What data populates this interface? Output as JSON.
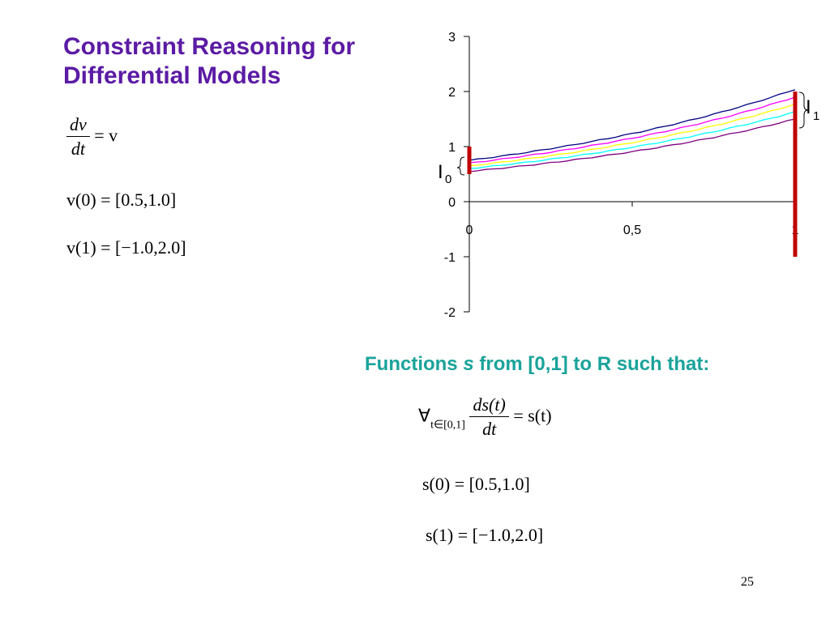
{
  "slide": {
    "title": "Constraint Reasoning for Differential Models",
    "page_number": "25"
  },
  "left_equations": {
    "ode": {
      "numerator": "dv",
      "denominator": "dt",
      "rhs": "= v"
    },
    "v0": "v(0) = [0.5,1.0]",
    "v1": "v(1) = [−1.0,2.0]"
  },
  "right_section": {
    "subtitle_prefix": "Functions ",
    "subtitle_var": "s",
    "subtitle_suffix": " from [0,1] to R such that:",
    "forall": "∀",
    "forall_sub": "t∈[0,1]",
    "ode": {
      "numerator": "ds(t)",
      "denominator": "dt",
      "rhs": "= s(t)"
    },
    "s0": "s(0) = [0.5,1.0]",
    "s1": "s(1) = [−1.0,2.0]"
  },
  "chart_data": {
    "type": "line",
    "ylim": [
      -2,
      3
    ],
    "xlim": [
      0,
      1
    ],
    "y_ticks": [
      "3",
      "2",
      "1",
      "0",
      "-1",
      "-2"
    ],
    "x_tick_labels": [
      "0",
      "0,5",
      "1"
    ],
    "interval_labels": {
      "I0": {
        "main": "I",
        "sub": "0"
      },
      "I1": {
        "main": "I",
        "sub": "1"
      }
    },
    "intervals": [
      {
        "name": "I0",
        "x": 0,
        "low": 0.5,
        "high": 1.0,
        "color": "#c00000"
      },
      {
        "name": "I1",
        "x": 1,
        "low": -1.0,
        "high": 2.0,
        "color": "#c00000"
      }
    ],
    "series": [
      {
        "initial": 0.75,
        "color": "#000080",
        "values_at_x": [
          0,
          0.25,
          0.5,
          0.75,
          1
        ],
        "values": [
          0.75,
          0.96,
          1.24,
          1.59,
          2.04
        ]
      },
      {
        "initial": 0.7,
        "color": "#ff00ff",
        "values_at_x": [
          0,
          0.25,
          0.5,
          0.75,
          1
        ],
        "values": [
          0.7,
          0.9,
          1.15,
          1.48,
          1.9
        ]
      },
      {
        "initial": 0.65,
        "color": "#ffff00",
        "values_at_x": [
          0,
          0.25,
          0.5,
          0.75,
          1
        ],
        "values": [
          0.65,
          0.83,
          1.07,
          1.38,
          1.77
        ]
      },
      {
        "initial": 0.6,
        "color": "#00ffff",
        "values_at_x": [
          0,
          0.25,
          0.5,
          0.75,
          1
        ],
        "values": [
          0.6,
          0.77,
          0.99,
          1.27,
          1.63
        ]
      },
      {
        "initial": 0.55,
        "color": "#800080",
        "values_at_x": [
          0,
          0.25,
          0.5,
          0.75,
          1
        ],
        "values": [
          0.55,
          0.71,
          0.91,
          1.16,
          1.5
        ]
      }
    ]
  }
}
